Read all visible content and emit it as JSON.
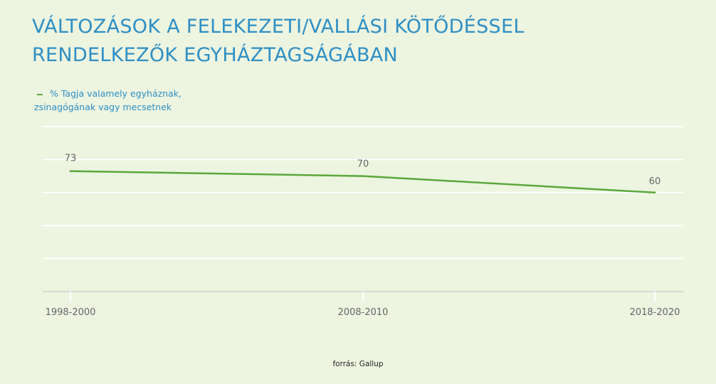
{
  "title": {
    "line1": "VÁLTOZÁSOK A FELEKEZETI/VALLÁSI  KÖTŐDÉSSEL",
    "line2": "RENDELKEZŐK EGYHÁZTAGSÁGÁBAN"
  },
  "legend": {
    "line1": "% Tagja valamely egyháznak,",
    "line2": "zsinagógának vagy mecsetnek"
  },
  "footer": "forrás: Gallup",
  "colors": {
    "title": "#2e8fc4",
    "line": "#5aa83a",
    "background": "#edf4e0",
    "grid": "#ffffff",
    "axis": "#d8dcd4",
    "label": "#666666"
  },
  "chart_data": {
    "type": "line",
    "title": "VÁLTOZÁSOK A FELEKEZETI/VALLÁSI  KÖTŐDÉSSEL RENDELKEZŐK EGYHÁZTAGSÁGÁBAN",
    "categories": [
      "1998-2000",
      "2008-2010",
      "2018-2020"
    ],
    "series": [
      {
        "name": "% Tagja valamely egyháznak, zsinagógának vagy mecsetnek",
        "values": [
          73,
          70,
          60
        ],
        "data_labels": [
          "73",
          "70",
          "60"
        ]
      }
    ],
    "xlabel": "",
    "ylabel": "",
    "ylim": [
      0,
      100
    ],
    "yticks": [
      0,
      20,
      40,
      60,
      80,
      100
    ],
    "grid": true,
    "y_tick_labels_visible": false,
    "legend_position": "top-left"
  }
}
